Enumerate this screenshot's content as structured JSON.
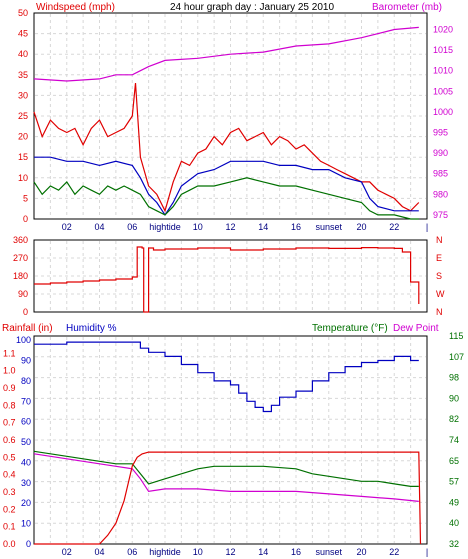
{
  "chart_data": [
    {
      "type": "line",
      "title": "24 hour graph day : January 25 2010",
      "y_left_label": "Windspeed (mph)",
      "y_right_label": "Barometer (mb)",
      "x_ticks": [
        "02",
        "04",
        "06",
        "hightide",
        "10",
        "12",
        "14",
        "16",
        "sunset",
        "20",
        "22",
        "|"
      ],
      "y_left_ticks": [
        "0",
        "5",
        "10",
        "15",
        "20",
        "25",
        "30",
        "35",
        "40",
        "45",
        "50"
      ],
      "y_right_ticks": [
        "975",
        "980",
        "985",
        "990",
        "995",
        "1000",
        "1005",
        "1010",
        "1015",
        "1020"
      ],
      "ylim_left": [
        0,
        50
      ],
      "ylim_right": [
        974,
        1024
      ],
      "grid": true,
      "series": [
        {
          "key": "barometer",
          "axis": "right",
          "color": "#d000d0",
          "x": [
            0,
            2,
            4,
            5,
            6,
            6.5,
            7,
            8,
            10,
            12,
            14,
            16,
            18,
            20,
            22,
            23.5
          ],
          "y": [
            1008,
            1007.5,
            1008,
            1009,
            1009,
            1010,
            1011,
            1012.5,
            1013,
            1014,
            1014.5,
            1016,
            1016.5,
            1018,
            1020,
            1020.5
          ]
        },
        {
          "key": "gust",
          "axis": "left",
          "color": "#e00000",
          "x": [
            0,
            0.5,
            1,
            1.5,
            2,
            2.5,
            3,
            3.5,
            4,
            4.5,
            5,
            5.5,
            6,
            6.2,
            6.5,
            7,
            7.5,
            8,
            8.5,
            9,
            9.5,
            10,
            10.5,
            11,
            11.5,
            12,
            12.5,
            13,
            13.5,
            14,
            14.5,
            15,
            15.5,
            16,
            16.5,
            17,
            17.5,
            18,
            18.5,
            19,
            19.5,
            20,
            20.5,
            21,
            21.5,
            22,
            22.5,
            23,
            23.5
          ],
          "y": [
            26,
            20,
            24,
            22,
            21,
            22,
            18,
            22,
            24,
            20,
            21,
            22,
            25,
            33,
            15,
            8,
            6,
            2,
            9,
            14,
            13,
            16,
            17,
            20,
            18,
            21,
            22,
            19,
            20,
            21,
            18,
            20,
            19,
            17,
            18,
            16,
            14,
            13,
            12,
            11,
            10,
            9,
            9,
            7,
            6,
            5,
            3,
            2,
            4
          ]
        },
        {
          "key": "avg",
          "axis": "left",
          "color": "#0000c0",
          "x": [
            0,
            1,
            2,
            3,
            4,
            5,
            6,
            6.5,
            7,
            7.5,
            8,
            8.5,
            9,
            10,
            11,
            12,
            13,
            14,
            15,
            16,
            17,
            18,
            19,
            20,
            20.5,
            21,
            22,
            23,
            23.5
          ],
          "y": [
            15,
            15,
            14,
            14,
            13,
            14,
            13,
            10,
            6,
            4,
            1,
            4,
            8,
            11,
            12,
            14,
            14,
            14,
            13,
            13,
            12,
            12,
            10,
            9,
            5,
            3,
            2,
            2,
            2
          ]
        },
        {
          "key": "wind",
          "axis": "left",
          "color": "#007000",
          "x": [
            0,
            0.5,
            1,
            1.5,
            2,
            2.5,
            3,
            3.5,
            4,
            4.5,
            5,
            5.5,
            6,
            6.5,
            7,
            7.5,
            8,
            8.5,
            9,
            9.5,
            10,
            11,
            12,
            13,
            14,
            15,
            16,
            17,
            18,
            19,
            20,
            20.5,
            21,
            22,
            23,
            23.5
          ],
          "y": [
            9,
            6,
            8,
            7,
            9,
            6,
            8,
            7,
            6,
            8,
            7,
            8,
            7,
            6,
            3,
            2,
            1,
            3,
            6,
            7,
            8,
            8,
            9,
            10,
            9,
            8,
            8,
            7,
            6,
            5,
            4,
            2,
            1,
            1,
            0,
            0
          ]
        }
      ]
    },
    {
      "type": "line",
      "y_left_ticks": [
        "0",
        "90",
        "180",
        "270",
        "360"
      ],
      "y_right_ticks": [
        "N",
        "W",
        "S",
        "E",
        "N"
      ],
      "ylim": [
        0,
        360
      ],
      "series": [
        {
          "key": "direction",
          "color": "#e00000",
          "x": [
            0,
            1,
            2,
            3,
            4,
            5,
            6,
            6.3,
            6.6,
            6.7,
            7,
            7.3,
            8,
            10,
            12,
            14,
            16,
            18,
            20,
            21,
            22,
            22.5,
            23,
            23.5
          ],
          "y": [
            140,
            145,
            150,
            155,
            160,
            165,
            175,
            325,
            320,
            0,
            320,
            310,
            315,
            320,
            310,
            315,
            320,
            318,
            322,
            320,
            318,
            300,
            150,
            40
          ]
        }
      ]
    },
    {
      "type": "line",
      "y_left_label_1": "Rainfall (in)",
      "y_left_label_2": "Humidity %",
      "y_right_label_1": "Temperature (°F)",
      "y_right_label_2": "Dew Point",
      "x_ticks": [
        "02",
        "04",
        "06",
        "hightide",
        "10",
        "12",
        "14",
        "16",
        "sunset",
        "20",
        "22",
        "|"
      ],
      "y_rain_ticks": [
        "0.0",
        "0.1",
        "0.2",
        "0.3",
        "0.4",
        "0.5",
        "0.6",
        "0.7",
        "0.8",
        "0.9",
        "1.0",
        "1.1"
      ],
      "y_hum_ticks": [
        "0",
        "10",
        "20",
        "30",
        "40",
        "50",
        "60",
        "70",
        "80",
        "90",
        "100"
      ],
      "y_temp_ticks": [
        "32",
        "40",
        "49",
        "57",
        "65",
        "74",
        "82",
        "90",
        "98",
        "107",
        "115"
      ],
      "ylim_rain": [
        0,
        1.2
      ],
      "ylim_hum": [
        0,
        102
      ],
      "ylim_temp": [
        32,
        115
      ],
      "series": [
        {
          "key": "humidity",
          "axis": "hum",
          "color": "#0000c0",
          "x": [
            0,
            2,
            4,
            6,
            6.5,
            7,
            8,
            9,
            10,
            11,
            12,
            12.5,
            13,
            13.5,
            14,
            14.5,
            15,
            16,
            17,
            18,
            19,
            20,
            21,
            22,
            23,
            23.5
          ],
          "y": [
            98,
            99,
            99,
            99,
            96,
            94,
            92,
            88,
            84,
            80,
            78,
            74,
            70,
            67,
            65,
            68,
            72,
            75,
            80,
            84,
            87,
            89,
            90,
            92,
            90,
            90
          ]
        },
        {
          "key": "temperature",
          "axis": "temp",
          "color": "#007000",
          "x": [
            0,
            1,
            2,
            3,
            4,
            5,
            6,
            6.5,
            7,
            8,
            10,
            11,
            12,
            14,
            16,
            17,
            18,
            19,
            20,
            21,
            22,
            23,
            23.5
          ],
          "y": [
            69,
            68,
            67,
            66,
            65,
            64,
            64,
            60,
            56,
            58,
            62,
            63,
            63,
            63,
            62,
            60,
            59,
            58,
            57,
            57,
            56,
            55,
            55
          ]
        },
        {
          "key": "dewpoint",
          "axis": "temp",
          "color": "#d000d0",
          "x": [
            0,
            1,
            2,
            3,
            4,
            5,
            6,
            6.5,
            7,
            8,
            10,
            12,
            14,
            16,
            18,
            20,
            22,
            23.5
          ],
          "y": [
            68,
            67,
            66,
            65,
            64,
            63,
            62,
            58,
            53,
            54,
            54,
            53,
            53,
            53,
            52,
            51,
            50,
            49
          ]
        },
        {
          "key": "rainfall",
          "axis": "rain",
          "color": "#e00000",
          "x": [
            0,
            2,
            4,
            4.5,
            5,
            5.5,
            6,
            6.3,
            6.6,
            7,
            23.5,
            23.6
          ],
          "y": [
            0,
            0,
            0,
            0.05,
            0.12,
            0.25,
            0.45,
            0.5,
            0.52,
            0.53,
            0.53,
            0
          ]
        }
      ]
    }
  ]
}
